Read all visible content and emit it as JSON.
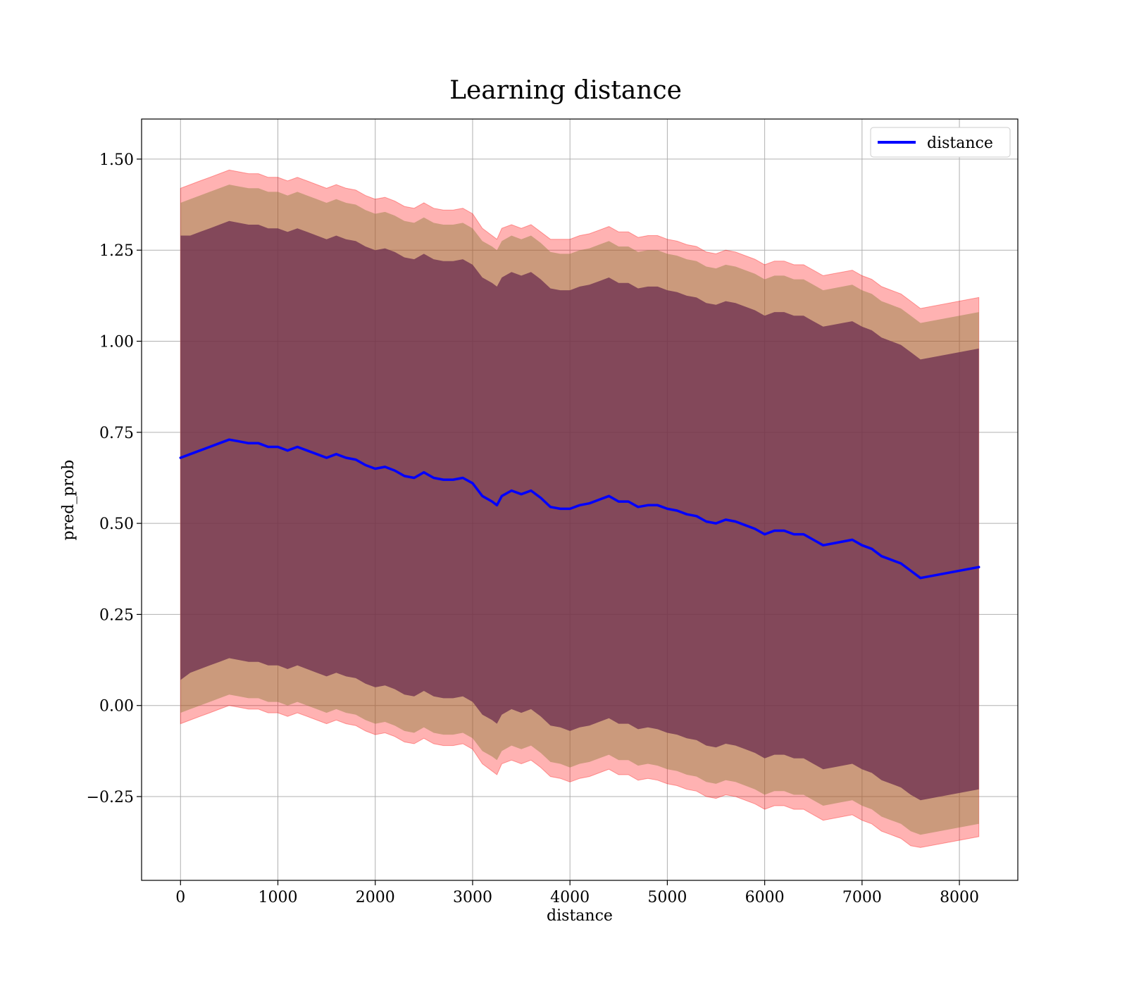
{
  "chart_data": {
    "type": "line",
    "title": "Learning distance",
    "xlabel": "distance",
    "ylabel": "pred_prob",
    "xlim": [
      -400,
      8600
    ],
    "ylim": [
      -0.48,
      1.61
    ],
    "grid": true,
    "legend_position": "top-right",
    "x_ticks": [
      0,
      1000,
      2000,
      3000,
      4000,
      5000,
      6000,
      7000,
      8000
    ],
    "x_tick_labels": [
      "0",
      "1000",
      "2000",
      "3000",
      "4000",
      "5000",
      "6000",
      "7000",
      "8000"
    ],
    "y_ticks": [
      -0.25,
      0.0,
      0.25,
      0.5,
      0.75,
      1.0,
      1.25,
      1.5
    ],
    "y_tick_labels": [
      "−0.25",
      "0.00",
      "0.25",
      "0.50",
      "0.75",
      "1.00",
      "1.25",
      "1.50"
    ],
    "colors": {
      "line": "#0000ff",
      "band_outer": "#ff0000",
      "band_middle": "#8b7d3a",
      "band_inner": "#6b2c4f"
    },
    "series": [
      {
        "name": "distance",
        "x": [
          0,
          100,
          200,
          300,
          400,
          500,
          600,
          700,
          800,
          900,
          1000,
          1100,
          1200,
          1300,
          1400,
          1500,
          1600,
          1700,
          1800,
          1900,
          2000,
          2100,
          2200,
          2300,
          2400,
          2500,
          2600,
          2700,
          2800,
          2900,
          3000,
          3100,
          3200,
          3250,
          3300,
          3400,
          3500,
          3600,
          3700,
          3800,
          3900,
          4000,
          4100,
          4200,
          4300,
          4400,
          4500,
          4600,
          4700,
          4800,
          4900,
          5000,
          5100,
          5200,
          5300,
          5400,
          5500,
          5600,
          5700,
          5800,
          5900,
          6000,
          6100,
          6200,
          6300,
          6400,
          6500,
          6600,
          6700,
          6800,
          6900,
          7000,
          7100,
          7200,
          7300,
          7400,
          7500,
          7600,
          8200
        ],
        "values": [
          0.68,
          0.69,
          0.7,
          0.71,
          0.72,
          0.73,
          0.725,
          0.72,
          0.72,
          0.71,
          0.71,
          0.7,
          0.71,
          0.7,
          0.69,
          0.68,
          0.69,
          0.68,
          0.675,
          0.66,
          0.65,
          0.655,
          0.645,
          0.63,
          0.625,
          0.64,
          0.625,
          0.62,
          0.62,
          0.625,
          0.61,
          0.575,
          0.56,
          0.55,
          0.575,
          0.59,
          0.58,
          0.59,
          0.57,
          0.545,
          0.54,
          0.54,
          0.55,
          0.555,
          0.565,
          0.575,
          0.56,
          0.56,
          0.545,
          0.55,
          0.55,
          0.54,
          0.535,
          0.525,
          0.52,
          0.505,
          0.5,
          0.51,
          0.505,
          0.495,
          0.485,
          0.47,
          0.48,
          0.48,
          0.47,
          0.47,
          0.455,
          0.44,
          0.445,
          0.45,
          0.455,
          0.44,
          0.43,
          0.41,
          0.4,
          0.39,
          0.37,
          0.35,
          0.38
        ]
      }
    ],
    "bands": {
      "inner_lower": [
        0.07,
        0.09,
        0.1,
        0.11,
        0.12,
        0.13,
        0.125,
        0.12,
        0.12,
        0.11,
        0.11,
        0.1,
        0.11,
        0.1,
        0.09,
        0.08,
        0.09,
        0.08,
        0.075,
        0.06,
        0.05,
        0.055,
        0.045,
        0.03,
        0.025,
        0.04,
        0.025,
        0.02,
        0.02,
        0.025,
        0.01,
        -0.025,
        -0.04,
        -0.05,
        -0.025,
        -0.01,
        -0.02,
        -0.01,
        -0.03,
        -0.055,
        -0.06,
        -0.07,
        -0.06,
        -0.055,
        -0.045,
        -0.035,
        -0.05,
        -0.05,
        -0.065,
        -0.06,
        -0.065,
        -0.075,
        -0.08,
        -0.09,
        -0.095,
        -0.11,
        -0.115,
        -0.105,
        -0.11,
        -0.12,
        -0.13,
        -0.145,
        -0.135,
        -0.135,
        -0.145,
        -0.145,
        -0.16,
        -0.175,
        -0.17,
        -0.165,
        -0.16,
        -0.175,
        -0.185,
        -0.205,
        -0.215,
        -0.225,
        -0.245,
        -0.26,
        -0.23
      ],
      "inner_upper": [
        1.29,
        1.29,
        1.3,
        1.31,
        1.32,
        1.33,
        1.325,
        1.32,
        1.32,
        1.31,
        1.31,
        1.3,
        1.31,
        1.3,
        1.29,
        1.28,
        1.29,
        1.28,
        1.275,
        1.26,
        1.25,
        1.255,
        1.245,
        1.23,
        1.225,
        1.24,
        1.225,
        1.22,
        1.22,
        1.225,
        1.21,
        1.175,
        1.16,
        1.15,
        1.175,
        1.19,
        1.18,
        1.19,
        1.17,
        1.145,
        1.14,
        1.14,
        1.15,
        1.155,
        1.165,
        1.175,
        1.16,
        1.16,
        1.145,
        1.15,
        1.15,
        1.14,
        1.135,
        1.125,
        1.12,
        1.105,
        1.1,
        1.11,
        1.105,
        1.095,
        1.085,
        1.07,
        1.08,
        1.08,
        1.07,
        1.07,
        1.055,
        1.04,
        1.045,
        1.05,
        1.055,
        1.04,
        1.03,
        1.01,
        1.0,
        0.99,
        0.97,
        0.95,
        0.98
      ],
      "middle_lower": [
        -0.02,
        -0.01,
        0.0,
        0.01,
        0.02,
        0.03,
        0.025,
        0.02,
        0.02,
        0.01,
        0.01,
        0.0,
        0.01,
        0.0,
        -0.01,
        -0.02,
        -0.01,
        -0.02,
        -0.025,
        -0.04,
        -0.05,
        -0.045,
        -0.055,
        -0.07,
        -0.075,
        -0.06,
        -0.075,
        -0.08,
        -0.08,
        -0.075,
        -0.09,
        -0.125,
        -0.14,
        -0.15,
        -0.125,
        -0.11,
        -0.12,
        -0.11,
        -0.13,
        -0.155,
        -0.16,
        -0.17,
        -0.16,
        -0.155,
        -0.145,
        -0.135,
        -0.15,
        -0.15,
        -0.165,
        -0.16,
        -0.165,
        -0.175,
        -0.18,
        -0.19,
        -0.195,
        -0.21,
        -0.215,
        -0.205,
        -0.21,
        -0.22,
        -0.23,
        -0.245,
        -0.235,
        -0.235,
        -0.245,
        -0.245,
        -0.26,
        -0.275,
        -0.27,
        -0.265,
        -0.26,
        -0.275,
        -0.285,
        -0.305,
        -0.315,
        -0.325,
        -0.345,
        -0.355,
        -0.325
      ],
      "middle_upper": [
        1.38,
        1.39,
        1.4,
        1.41,
        1.42,
        1.43,
        1.425,
        1.42,
        1.42,
        1.41,
        1.41,
        1.4,
        1.41,
        1.4,
        1.39,
        1.38,
        1.39,
        1.38,
        1.375,
        1.36,
        1.35,
        1.355,
        1.345,
        1.33,
        1.325,
        1.34,
        1.325,
        1.32,
        1.32,
        1.325,
        1.31,
        1.275,
        1.26,
        1.25,
        1.275,
        1.29,
        1.28,
        1.29,
        1.27,
        1.245,
        1.24,
        1.24,
        1.25,
        1.255,
        1.265,
        1.275,
        1.26,
        1.26,
        1.245,
        1.25,
        1.25,
        1.24,
        1.235,
        1.225,
        1.22,
        1.205,
        1.2,
        1.21,
        1.205,
        1.195,
        1.185,
        1.17,
        1.18,
        1.18,
        1.17,
        1.17,
        1.155,
        1.14,
        1.145,
        1.15,
        1.155,
        1.14,
        1.13,
        1.11,
        1.1,
        1.09,
        1.07,
        1.05,
        1.08
      ],
      "outer_lower": [
        -0.05,
        -0.04,
        -0.03,
        -0.02,
        -0.01,
        0.0,
        -0.005,
        -0.01,
        -0.01,
        -0.02,
        -0.02,
        -0.03,
        -0.02,
        -0.03,
        -0.04,
        -0.05,
        -0.04,
        -0.05,
        -0.055,
        -0.07,
        -0.08,
        -0.075,
        -0.085,
        -0.1,
        -0.105,
        -0.09,
        -0.105,
        -0.11,
        -0.11,
        -0.105,
        -0.12,
        -0.16,
        -0.18,
        -0.19,
        -0.16,
        -0.15,
        -0.16,
        -0.15,
        -0.17,
        -0.195,
        -0.2,
        -0.21,
        -0.2,
        -0.195,
        -0.185,
        -0.175,
        -0.19,
        -0.19,
        -0.205,
        -0.2,
        -0.205,
        -0.215,
        -0.22,
        -0.23,
        -0.235,
        -0.25,
        -0.255,
        -0.245,
        -0.25,
        -0.26,
        -0.27,
        -0.285,
        -0.275,
        -0.275,
        -0.285,
        -0.285,
        -0.3,
        -0.315,
        -0.31,
        -0.305,
        -0.3,
        -0.315,
        -0.325,
        -0.345,
        -0.355,
        -0.365,
        -0.385,
        -0.39,
        -0.36
      ],
      "outer_upper": [
        1.42,
        1.43,
        1.44,
        1.45,
        1.46,
        1.47,
        1.465,
        1.46,
        1.46,
        1.45,
        1.45,
        1.44,
        1.45,
        1.44,
        1.43,
        1.42,
        1.43,
        1.42,
        1.415,
        1.4,
        1.39,
        1.395,
        1.385,
        1.37,
        1.365,
        1.38,
        1.365,
        1.36,
        1.36,
        1.365,
        1.35,
        1.31,
        1.29,
        1.28,
        1.31,
        1.32,
        1.31,
        1.32,
        1.3,
        1.28,
        1.28,
        1.28,
        1.29,
        1.295,
        1.305,
        1.315,
        1.3,
        1.3,
        1.285,
        1.29,
        1.29,
        1.28,
        1.275,
        1.265,
        1.26,
        1.245,
        1.24,
        1.25,
        1.245,
        1.235,
        1.225,
        1.21,
        1.22,
        1.22,
        1.21,
        1.21,
        1.195,
        1.18,
        1.185,
        1.19,
        1.195,
        1.18,
        1.17,
        1.15,
        1.14,
        1.13,
        1.11,
        1.09,
        1.12
      ]
    }
  }
}
